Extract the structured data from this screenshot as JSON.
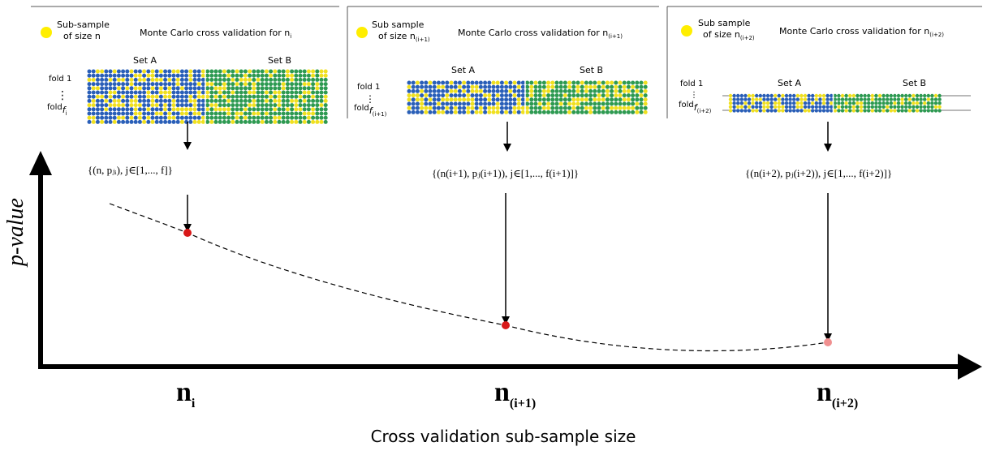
{
  "panels": [
    {
      "legend": [
        "Sub-sample",
        "of size n"
      ],
      "title": "Monte Carlo cross validation for n",
      "title_sub": "i",
      "set_a": "Set A",
      "set_b": "Set B",
      "fold_top": "fold 1",
      "fold_bottom": "fold",
      "fold_bottom_sub": "f",
      "fold_bottom_subsub": "i",
      "formula": "{(n, pⱼᵢ), j∈[1,..., f]}"
    },
    {
      "legend": [
        "Sub sample",
        "of size n"
      ],
      "legend_sub": "(i+1)",
      "title": "Monte Carlo cross validation for n",
      "title_sub": "(i+1)",
      "set_a": "Set A",
      "set_b": "Set B",
      "fold_top": "fold 1",
      "fold_bottom": "fold",
      "fold_bottom_sub": "f",
      "fold_bottom_subsub": "(i+1)",
      "formula": "{(n(i+1), pⱼ(i+1)), j∈[1,..., f(i+1)]}"
    },
    {
      "legend": [
        "Sub sample",
        "of size n"
      ],
      "legend_sub": "(i+2)",
      "title": "Monte Carlo cross validation for n",
      "title_sub": "(i+2)",
      "set_a": "Set A",
      "set_b": "Set B",
      "fold_top": "fold 1",
      "fold_bottom": "fold",
      "fold_bottom_sub": "f",
      "fold_bottom_subsub": "(i+2)",
      "formula": "{(n(i+2), pⱼ(i+2)), j∈[1,..., f(i+2)]}"
    }
  ],
  "x_ticks": [
    {
      "main": "n",
      "sub": "i"
    },
    {
      "main": "n",
      "sub": "(i+1)"
    },
    {
      "main": "n",
      "sub": "(i+2)"
    }
  ],
  "y_label": "p-value",
  "x_label": "Cross validation sub-sample size",
  "points": [
    {
      "n": "i",
      "p_value": 0.55
    },
    {
      "n": "(i+1)",
      "p_value": 0.17
    },
    {
      "n": "(i+2)",
      "p_value": 0.1
    }
  ],
  "colors": {
    "blue": "#2a5fb8",
    "yellow": "#f0e020",
    "green": "#2e9a52",
    "point_red": "#d81818",
    "point_pink": "#f09090",
    "axis": "#000000",
    "legend_dot": "#ffee00"
  }
}
